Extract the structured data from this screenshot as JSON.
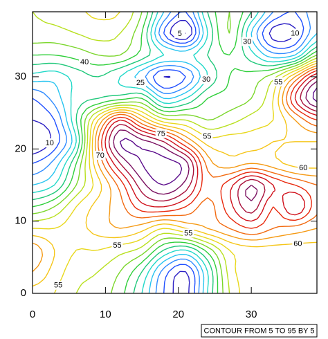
{
  "chart_data": {
    "type": "contour",
    "info_label": "CONTOUR FROM 5 TO 95 BY 5",
    "levels": [
      5,
      10,
      15,
      20,
      25,
      30,
      35,
      40,
      45,
      50,
      55,
      60,
      65,
      70,
      75,
      80,
      85,
      90,
      95
    ],
    "colors": [
      "#3b0a8f",
      "#2b1fc4",
      "#1f4fff",
      "#2f8bff",
      "#27c4f0",
      "#20d8c8",
      "#1fc87a",
      "#2fcf3a",
      "#7ad62a",
      "#b8e01f",
      "#e8d81c",
      "#f5c518",
      "#f59a14",
      "#f26a10",
      "#e8280c",
      "#d0101a",
      "#a8103a",
      "#7a1060",
      "#5a0a8a"
    ],
    "x": [
      0,
      3,
      6,
      9,
      12,
      15,
      18,
      21,
      24,
      27,
      30,
      33,
      36,
      39
    ],
    "y": [
      0,
      3,
      6,
      9,
      12,
      15,
      18,
      21,
      24,
      27,
      30,
      33,
      36,
      39
    ],
    "z": [
      [
        58,
        55,
        50,
        48,
        42,
        30,
        15,
        8,
        30,
        50,
        58,
        58,
        58,
        58
      ],
      [
        65,
        58,
        52,
        50,
        45,
        35,
        18,
        10,
        30,
        52,
        58,
        58,
        58,
        58
      ],
      [
        68,
        60,
        55,
        55,
        52,
        48,
        35,
        30,
        42,
        55,
        58,
        58,
        58,
        58
      ],
      [
        55,
        55,
        58,
        62,
        65,
        62,
        55,
        60,
        65,
        70,
        75,
        70,
        68,
        65
      ],
      [
        40,
        45,
        55,
        62,
        68,
        78,
        80,
        75,
        68,
        78,
        88,
        75,
        85,
        72
      ],
      [
        25,
        30,
        45,
        58,
        72,
        88,
        95,
        88,
        72,
        78,
        90,
        80,
        75,
        70
      ],
      [
        15,
        22,
        40,
        65,
        85,
        95,
        97,
        92,
        68,
        62,
        65,
        62,
        58,
        58
      ],
      [
        5,
        12,
        30,
        70,
        95,
        92,
        85,
        70,
        58,
        58,
        58,
        60,
        60,
        60
      ],
      [
        10,
        15,
        35,
        60,
        80,
        65,
        52,
        50,
        45,
        48,
        52,
        55,
        65,
        75
      ],
      [
        15,
        22,
        32,
        35,
        38,
        40,
        25,
        30,
        40,
        42,
        45,
        55,
        80,
        97
      ],
      [
        28,
        27,
        32,
        35,
        30,
        22,
        10,
        15,
        30,
        40,
        42,
        48,
        65,
        85
      ],
      [
        40,
        40,
        42,
        45,
        45,
        38,
        30,
        28,
        35,
        40,
        32,
        22,
        25,
        45
      ],
      [
        48,
        48,
        50,
        52,
        50,
        40,
        15,
        5,
        30,
        45,
        25,
        8,
        10,
        25
      ],
      [
        50,
        52,
        54,
        56,
        55,
        45,
        25,
        15,
        35,
        45,
        35,
        20,
        15,
        25
      ]
    ],
    "xlim": [
      0,
      39
    ],
    "ylim": [
      0,
      39
    ],
    "xticks": [
      0,
      10,
      20,
      30
    ],
    "yticks": [
      0,
      10,
      20,
      30
    ]
  }
}
